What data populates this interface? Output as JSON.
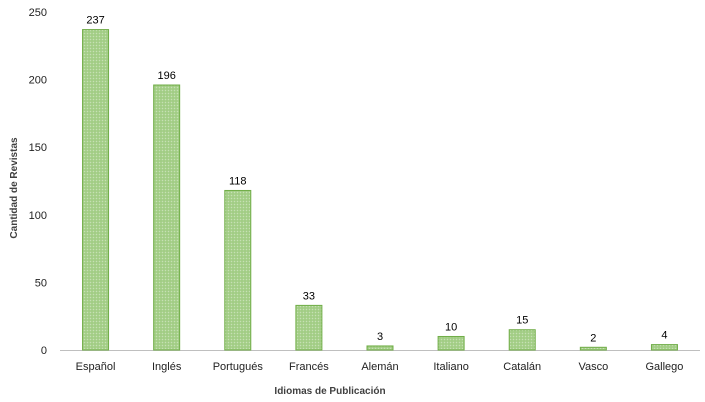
{
  "chart_data": {
    "type": "bar",
    "title": "",
    "xlabel": "Idiomas de Publicación",
    "ylabel": "Cantidad de Revistas",
    "categories": [
      "Español",
      "Inglés",
      "Portugués",
      "Francés",
      "Alemán",
      "Italiano",
      "Catalán",
      "Vasco",
      "Gallego"
    ],
    "values": [
      237,
      196,
      118,
      33,
      3,
      10,
      15,
      2,
      4
    ],
    "ylim": [
      0,
      250
    ],
    "yticks": [
      0,
      50,
      100,
      150,
      200,
      250
    ],
    "grid": false,
    "legend": "none",
    "colors": {
      "bar_fill": "#a9d18e",
      "bar_stroke": "#70ad47",
      "axis": "#bfbfbf"
    }
  }
}
